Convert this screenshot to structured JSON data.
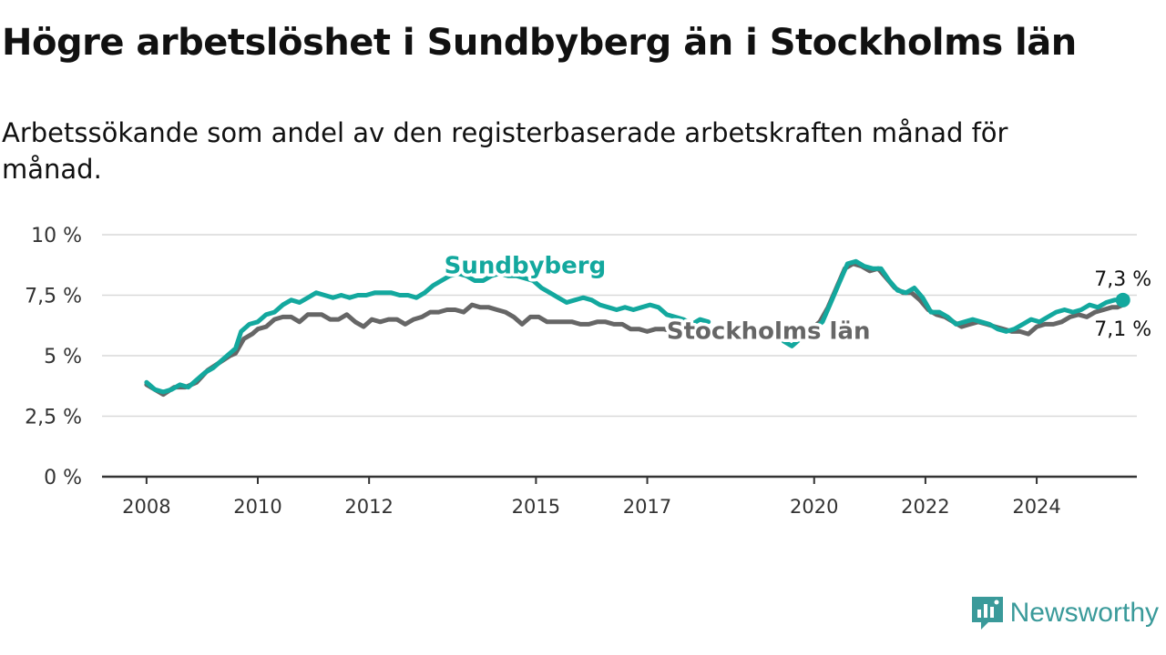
{
  "header": {
    "title": "Högre arbetslöshet i Sundbyberg än i Stockholms län",
    "subtitle": "Arbetssökande som andel av den registerbaserade arbetskraften månad för månad."
  },
  "brand": {
    "name": "Newsworthy",
    "color": "#3a9a9a",
    "icon": "newsworthy-logo-icon"
  },
  "chart_data": {
    "type": "line",
    "y_ticks": [
      {
        "value": 0,
        "label": "0 %"
      },
      {
        "value": 2.5,
        "label": "2,5 %"
      },
      {
        "value": 5,
        "label": "5 %"
      },
      {
        "value": 7.5,
        "label": "7,5 %"
      },
      {
        "value": 10,
        "label": "10 %"
      }
    ],
    "x_ticks": [
      {
        "value": 2008,
        "label": "2008"
      },
      {
        "value": 2010,
        "label": "2010"
      },
      {
        "value": 2012,
        "label": "2012"
      },
      {
        "value": 2015,
        "label": "2015"
      },
      {
        "value": 2017,
        "label": "2017"
      },
      {
        "value": 2020,
        "label": "2020"
      },
      {
        "value": 2022,
        "label": "2022"
      },
      {
        "value": 2024,
        "label": "2024"
      }
    ],
    "xlim": [
      2007.2,
      2025.8
    ],
    "ylim": [
      0,
      10
    ],
    "grid": true,
    "series": [
      {
        "name": "Stockholms län",
        "color": "#666666",
        "end_label": "7,1 %",
        "segments": [
          [
            [
              2008.0,
              3.8
            ],
            [
              2008.15,
              3.6
            ],
            [
              2008.3,
              3.4
            ],
            [
              2008.5,
              3.7
            ],
            [
              2008.7,
              3.7
            ],
            [
              2008.9,
              3.9
            ],
            [
              2009.1,
              4.4
            ],
            [
              2009.3,
              4.7
            ],
            [
              2009.5,
              5.0
            ],
            [
              2009.6,
              5.1
            ],
            [
              2009.75,
              5.7
            ],
            [
              2009.9,
              5.9
            ],
            [
              2010.0,
              6.1
            ],
            [
              2010.15,
              6.2
            ],
            [
              2010.3,
              6.5
            ],
            [
              2010.45,
              6.6
            ],
            [
              2010.6,
              6.6
            ],
            [
              2010.75,
              6.4
            ],
            [
              2010.9,
              6.7
            ],
            [
              2011.0,
              6.7
            ],
            [
              2011.15,
              6.7
            ],
            [
              2011.3,
              6.5
            ],
            [
              2011.45,
              6.5
            ],
            [
              2011.6,
              6.7
            ],
            [
              2011.75,
              6.4
            ],
            [
              2011.9,
              6.2
            ],
            [
              2012.05,
              6.5
            ],
            [
              2012.2,
              6.4
            ],
            [
              2012.35,
              6.5
            ],
            [
              2012.5,
              6.5
            ],
            [
              2012.65,
              6.3
            ],
            [
              2012.8,
              6.5
            ],
            [
              2012.95,
              6.6
            ],
            [
              2013.1,
              6.8
            ],
            [
              2013.25,
              6.8
            ],
            [
              2013.4,
              6.9
            ],
            [
              2013.55,
              6.9
            ],
            [
              2013.7,
              6.8
            ],
            [
              2013.85,
              7.1
            ],
            [
              2014.0,
              7.0
            ],
            [
              2014.15,
              7.0
            ],
            [
              2014.3,
              6.9
            ],
            [
              2014.45,
              6.8
            ],
            [
              2014.6,
              6.6
            ],
            [
              2014.75,
              6.3
            ],
            [
              2014.9,
              6.6
            ],
            [
              2015.05,
              6.6
            ],
            [
              2015.2,
              6.4
            ],
            [
              2015.35,
              6.4
            ],
            [
              2015.5,
              6.4
            ],
            [
              2015.65,
              6.4
            ],
            [
              2015.8,
              6.3
            ],
            [
              2015.95,
              6.3
            ],
            [
              2016.1,
              6.4
            ],
            [
              2016.25,
              6.4
            ],
            [
              2016.4,
              6.3
            ],
            [
              2016.55,
              6.3
            ],
            [
              2016.7,
              6.1
            ],
            [
              2016.85,
              6.1
            ],
            [
              2017.0,
              6.0
            ],
            [
              2017.15,
              6.1
            ],
            [
              2017.3,
              6.1
            ],
            [
              2017.45,
              6.0
            ],
            [
              2017.6,
              6.1
            ],
            [
              2017.75,
              6.0
            ],
            [
              2017.9,
              6.1
            ]
          ],
          [
            [
              2019.8,
              6.1
            ],
            [
              2019.95,
              6.1
            ],
            [
              2020.1,
              6.4
            ],
            [
              2020.25,
              7.0
            ],
            [
              2020.4,
              7.8
            ],
            [
              2020.55,
              8.6
            ],
            [
              2020.7,
              8.8
            ],
            [
              2020.85,
              8.7
            ],
            [
              2021.0,
              8.5
            ],
            [
              2021.15,
              8.6
            ],
            [
              2021.3,
              8.2
            ],
            [
              2021.45,
              7.8
            ],
            [
              2021.6,
              7.6
            ],
            [
              2021.75,
              7.6
            ],
            [
              2021.9,
              7.3
            ],
            [
              2022.05,
              6.9
            ],
            [
              2022.2,
              6.7
            ],
            [
              2022.35,
              6.6
            ],
            [
              2022.5,
              6.4
            ],
            [
              2022.65,
              6.2
            ],
            [
              2022.8,
              6.3
            ],
            [
              2022.95,
              6.4
            ],
            [
              2023.1,
              6.3
            ],
            [
              2023.25,
              6.2
            ],
            [
              2023.4,
              6.1
            ],
            [
              2023.55,
              6.0
            ],
            [
              2023.7,
              6.0
            ],
            [
              2023.85,
              5.9
            ],
            [
              2024.0,
              6.2
            ],
            [
              2024.15,
              6.3
            ],
            [
              2024.3,
              6.3
            ],
            [
              2024.45,
              6.4
            ],
            [
              2024.6,
              6.6
            ],
            [
              2024.75,
              6.7
            ],
            [
              2024.9,
              6.6
            ],
            [
              2025.05,
              6.8
            ],
            [
              2025.2,
              6.9
            ],
            [
              2025.35,
              7.0
            ],
            [
              2025.45,
              7.0
            ],
            [
              2025.55,
              7.1
            ]
          ]
        ]
      },
      {
        "name": "Sundbyberg",
        "color": "#13a89e",
        "end_label": "7,3 %",
        "segments": [
          [
            [
              2008.0,
              3.9
            ],
            [
              2008.15,
              3.6
            ],
            [
              2008.3,
              3.5
            ],
            [
              2008.45,
              3.6
            ],
            [
              2008.6,
              3.8
            ],
            [
              2008.75,
              3.7
            ],
            [
              2008.9,
              4.0
            ],
            [
              2009.05,
              4.3
            ],
            [
              2009.2,
              4.5
            ],
            [
              2009.35,
              4.8
            ],
            [
              2009.5,
              5.1
            ],
            [
              2009.6,
              5.3
            ],
            [
              2009.7,
              6.0
            ],
            [
              2009.85,
              6.3
            ],
            [
              2010.0,
              6.4
            ],
            [
              2010.15,
              6.7
            ],
            [
              2010.3,
              6.8
            ],
            [
              2010.45,
              7.1
            ],
            [
              2010.6,
              7.3
            ],
            [
              2010.75,
              7.2
            ],
            [
              2010.9,
              7.4
            ],
            [
              2011.05,
              7.6
            ],
            [
              2011.2,
              7.5
            ],
            [
              2011.35,
              7.4
            ],
            [
              2011.5,
              7.5
            ],
            [
              2011.65,
              7.4
            ],
            [
              2011.8,
              7.5
            ],
            [
              2011.95,
              7.5
            ],
            [
              2012.1,
              7.6
            ],
            [
              2012.25,
              7.6
            ],
            [
              2012.4,
              7.6
            ],
            [
              2012.55,
              7.5
            ],
            [
              2012.7,
              7.5
            ],
            [
              2012.85,
              7.4
            ],
            [
              2013.0,
              7.6
            ],
            [
              2013.15,
              7.9
            ],
            [
              2013.3,
              8.1
            ],
            [
              2013.45,
              8.3
            ],
            [
              2013.6,
              8.4
            ],
            [
              2013.75,
              8.3
            ],
            [
              2013.9,
              8.1
            ],
            [
              2014.05,
              8.1
            ],
            [
              2014.2,
              8.3
            ],
            [
              2014.35,
              8.4
            ],
            [
              2014.5,
              8.3
            ],
            [
              2014.65,
              8.3
            ],
            [
              2014.8,
              8.2
            ],
            [
              2014.95,
              8.1
            ],
            [
              2015.1,
              7.8
            ],
            [
              2015.25,
              7.6
            ],
            [
              2015.4,
              7.4
            ],
            [
              2015.55,
              7.2
            ],
            [
              2015.7,
              7.3
            ],
            [
              2015.85,
              7.4
            ],
            [
              2016.0,
              7.3
            ],
            [
              2016.15,
              7.1
            ],
            [
              2016.3,
              7.0
            ],
            [
              2016.45,
              6.9
            ],
            [
              2016.6,
              7.0
            ],
            [
              2016.75,
              6.9
            ],
            [
              2016.9,
              7.0
            ],
            [
              2017.05,
              7.1
            ],
            [
              2017.2,
              7.0
            ],
            [
              2017.35,
              6.7
            ],
            [
              2017.5,
              6.6
            ],
            [
              2017.65,
              6.5
            ],
            [
              2017.8,
              6.3
            ],
            [
              2017.95,
              6.5
            ],
            [
              2018.1,
              6.4
            ]
          ],
          [
            [
              2019.45,
              5.6
            ],
            [
              2019.6,
              5.4
            ],
            [
              2019.75,
              5.7
            ],
            [
              2019.95,
              6.0
            ],
            [
              2020.15,
              6.4
            ],
            [
              2020.3,
              7.2
            ],
            [
              2020.45,
              8.0
            ],
            [
              2020.6,
              8.8
            ],
            [
              2020.75,
              8.9
            ],
            [
              2020.9,
              8.7
            ],
            [
              2021.05,
              8.6
            ],
            [
              2021.2,
              8.6
            ],
            [
              2021.35,
              8.1
            ],
            [
              2021.5,
              7.7
            ],
            [
              2021.65,
              7.6
            ],
            [
              2021.8,
              7.8
            ],
            [
              2021.95,
              7.4
            ],
            [
              2022.1,
              6.8
            ],
            [
              2022.25,
              6.8
            ],
            [
              2022.4,
              6.6
            ],
            [
              2022.55,
              6.3
            ],
            [
              2022.7,
              6.4
            ],
            [
              2022.85,
              6.5
            ],
            [
              2023.0,
              6.4
            ],
            [
              2023.15,
              6.3
            ],
            [
              2023.3,
              6.1
            ],
            [
              2023.45,
              6.0
            ],
            [
              2023.6,
              6.1
            ],
            [
              2023.75,
              6.3
            ],
            [
              2023.9,
              6.5
            ],
            [
              2024.05,
              6.4
            ],
            [
              2024.2,
              6.6
            ],
            [
              2024.35,
              6.8
            ],
            [
              2024.5,
              6.9
            ],
            [
              2024.65,
              6.8
            ],
            [
              2024.8,
              6.9
            ],
            [
              2024.95,
              7.1
            ],
            [
              2025.1,
              7.0
            ],
            [
              2025.25,
              7.2
            ],
            [
              2025.4,
              7.3
            ],
            [
              2025.55,
              7.3
            ]
          ]
        ]
      }
    ],
    "series_labels": [
      {
        "text": "Sundbyberg",
        "x": 2013.35,
        "y": 8.4,
        "color": "#13a89e"
      },
      {
        "text": "Stockholms län",
        "x": 2017.35,
        "y": 5.7,
        "color": "#666666"
      }
    ]
  }
}
